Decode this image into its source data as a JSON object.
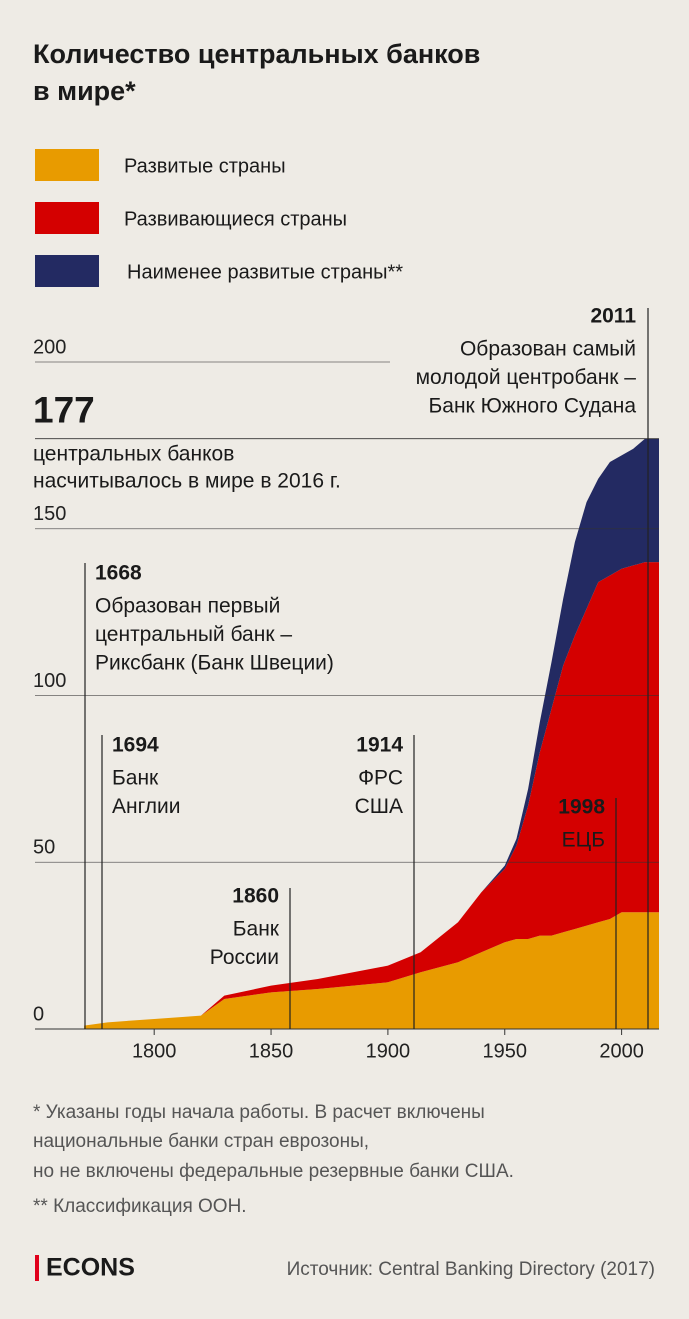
{
  "chart_data": {
    "type": "stacked_area",
    "title": [
      "Количество центральных банков",
      "в мире*"
    ],
    "x": [
      1770,
      1780,
      1800,
      1820,
      1830,
      1850,
      1870,
      1900,
      1914,
      1930,
      1940,
      1950,
      1955,
      1960,
      1965,
      1970,
      1975,
      1980,
      1985,
      1990,
      1995,
      2000,
      2005,
      2010,
      2016
    ],
    "series": [
      {
        "name": "Развитые страны",
        "color": "#e89b00",
        "values": [
          1,
          2,
          3,
          4,
          9,
          11,
          12,
          14,
          17,
          20,
          23,
          26,
          27,
          27,
          28,
          28,
          29,
          30,
          31,
          32,
          33,
          35,
          35,
          35,
          35
        ]
      },
      {
        "name": "Развивающиеся страны",
        "color": "#d40000",
        "values": [
          0,
          0,
          0,
          0,
          1,
          2,
          3,
          5,
          6,
          12,
          18,
          22,
          28,
          40,
          55,
          68,
          80,
          88,
          95,
          102,
          103,
          103,
          104,
          105,
          105
        ]
      },
      {
        "name": "Наименее развитые страны**",
        "color": "#232a62",
        "values": [
          0,
          0,
          0,
          0,
          0,
          0,
          0,
          0,
          0,
          0,
          0,
          1,
          2,
          5,
          9,
          14,
          20,
          28,
          32,
          31,
          34,
          34,
          35,
          37,
          37
        ]
      }
    ],
    "xlim": [
      1749,
      2016
    ],
    "xticks": [
      1800,
      1850,
      1900,
      1950,
      2000
    ],
    "ylim": [
      0,
      200
    ],
    "yticks": [
      0,
      50,
      100,
      150,
      200
    ],
    "grid": true,
    "highlight": {
      "value": 177,
      "text": [
        "центральных банков",
        "насчитывалось в мире в 2016 г."
      ]
    },
    "annotations": [
      {
        "year": 2011,
        "text": [
          "Образован самый",
          "молодой центробанк –",
          "Банк Южного Судана"
        ]
      },
      {
        "year": 1668,
        "text": [
          "Образован первый",
          "центральный банк –",
          "Риксбанк (Банк Швеции)"
        ]
      },
      {
        "year": 1694,
        "text": [
          "Банк",
          "Англии"
        ]
      },
      {
        "year": 1860,
        "text": [
          "Банк",
          "России"
        ]
      },
      {
        "year": 1914,
        "text": [
          "ФРС",
          "США"
        ]
      },
      {
        "year": 1998,
        "text": [
          "ЕЦБ"
        ]
      }
    ],
    "footnotes": [
      "* Указаны годы начала работы. В расчет включены",
      "национальные банки стран еврозоны,",
      "но не включены федеральные резервные банки США.",
      "** Классификация ООН."
    ],
    "logo": "ECONS",
    "source": "Источник: Central Banking Directory (2017)"
  }
}
